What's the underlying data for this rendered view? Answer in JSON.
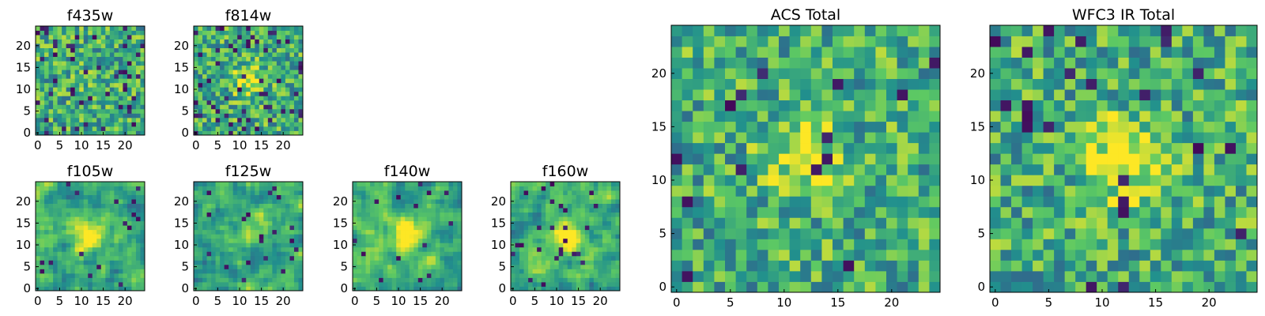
{
  "figure": {
    "description_free": true,
    "colormap": "viridis",
    "colormap_stops": [
      "#440154",
      "#3b528b",
      "#21908d",
      "#5dc963",
      "#fde725"
    ]
  },
  "chart_data": [
    {
      "type": "heatmap",
      "title": "f435w",
      "grid_size": 25,
      "xticks": [
        "0",
        "5",
        "10",
        "15",
        "20"
      ],
      "yticks": [
        "0",
        "5",
        "10",
        "15",
        "20"
      ],
      "seed": 11,
      "smooth": 0,
      "blob": [
        12,
        12,
        0.05
      ],
      "dark_frac": 0.08
    },
    {
      "type": "heatmap",
      "title": "f814w",
      "grid_size": 25,
      "xticks": [
        "0",
        "5",
        "10",
        "15",
        "20"
      ],
      "yticks": [
        "0",
        "5",
        "10",
        "15",
        "20"
      ],
      "seed": 23,
      "smooth": 0,
      "blob": [
        12,
        12,
        0.35
      ],
      "dark_frac": 0.08
    },
    {
      "type": "heatmap",
      "title": "f105w",
      "grid_size": 25,
      "xticks": [
        "0",
        "5",
        "10",
        "15",
        "20"
      ],
      "yticks": [
        "0",
        "5",
        "10",
        "15",
        "20"
      ],
      "seed": 37,
      "smooth": 1,
      "blob": [
        12,
        12,
        0.5
      ],
      "dark_frac": 0.03
    },
    {
      "type": "heatmap",
      "title": "f125w",
      "grid_size": 25,
      "xticks": [
        "0",
        "5",
        "10",
        "15",
        "20"
      ],
      "yticks": [
        "0",
        "5",
        "10",
        "15",
        "20"
      ],
      "seed": 41,
      "smooth": 1,
      "blob": [
        13,
        14,
        0.3
      ],
      "dark_frac": 0.03
    },
    {
      "type": "heatmap",
      "title": "f140w",
      "grid_size": 25,
      "xticks": [
        "0",
        "5",
        "10",
        "15",
        "20"
      ],
      "yticks": [
        "0",
        "5",
        "10",
        "15",
        "20"
      ],
      "seed": 53,
      "smooth": 1,
      "blob": [
        12,
        12,
        0.45
      ],
      "dark_frac": 0.03
    },
    {
      "type": "heatmap",
      "title": "f160w",
      "grid_size": 25,
      "xticks": [
        "0",
        "5",
        "10",
        "15",
        "20"
      ],
      "yticks": [
        "0",
        "5",
        "10",
        "15",
        "20"
      ],
      "seed": 67,
      "smooth": 1,
      "blob": [
        12,
        12,
        0.5
      ],
      "dark_frac": 0.03
    },
    {
      "type": "heatmap",
      "title": "ACS Total",
      "grid_size": 25,
      "xticks": [
        "0",
        "5",
        "10",
        "15",
        "20"
      ],
      "yticks": [
        "0",
        "5",
        "10",
        "15",
        "20"
      ],
      "seed": 79,
      "smooth": 0,
      "blob": [
        12,
        12,
        0.35
      ],
      "dark_frac": 0.03
    },
    {
      "type": "heatmap",
      "title": "WFC3 IR Total",
      "grid_size": 25,
      "xticks": [
        "0",
        "5",
        "10",
        "15",
        "20"
      ],
      "yticks": [
        "0",
        "5",
        "10",
        "15",
        "20"
      ],
      "seed": 97,
      "smooth": 0,
      "blob": [
        12,
        12,
        0.45
      ],
      "dark_frac": 0.04
    }
  ]
}
